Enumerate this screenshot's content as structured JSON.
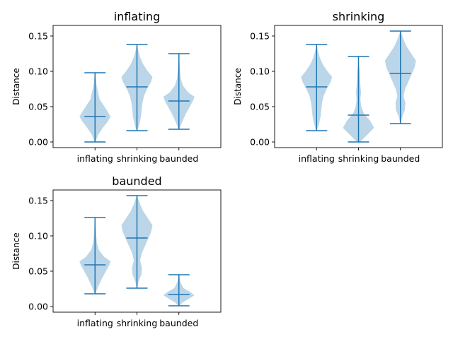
{
  "chart_data": [
    {
      "type": "violin",
      "title": "inflating",
      "xlabel": "",
      "ylabel": "Distance",
      "categories": [
        "inflating",
        "shrinking",
        "baunded"
      ],
      "ylim": [
        -0.008,
        0.165
      ],
      "yticks": [
        "0.00",
        "0.05",
        "0.10",
        "0.15"
      ],
      "grid": false,
      "violins": [
        {
          "min": 0.0,
          "median": 0.036,
          "max": 0.098,
          "density": [
            [
              0.0,
              0.02
            ],
            [
              0.01,
              0.2
            ],
            [
              0.02,
              0.5
            ],
            [
              0.03,
              0.85
            ],
            [
              0.036,
              1.0
            ],
            [
              0.045,
              0.75
            ],
            [
              0.052,
              0.55
            ],
            [
              0.06,
              0.3
            ],
            [
              0.07,
              0.2
            ],
            [
              0.08,
              0.1
            ],
            [
              0.09,
              0.05
            ],
            [
              0.098,
              0.01
            ]
          ]
        },
        {
          "min": 0.016,
          "median": 0.078,
          "max": 0.138,
          "density": [
            [
              0.016,
              0.02
            ],
            [
              0.025,
              0.15
            ],
            [
              0.035,
              0.25
            ],
            [
              0.045,
              0.3
            ],
            [
              0.055,
              0.35
            ],
            [
              0.065,
              0.45
            ],
            [
              0.075,
              0.65
            ],
            [
              0.085,
              0.9
            ],
            [
              0.092,
              1.0
            ],
            [
              0.1,
              0.7
            ],
            [
              0.11,
              0.4
            ],
            [
              0.12,
              0.2
            ],
            [
              0.13,
              0.08
            ],
            [
              0.138,
              0.01
            ]
          ]
        },
        {
          "min": 0.018,
          "median": 0.058,
          "max": 0.125,
          "density": [
            [
              0.018,
              0.02
            ],
            [
              0.028,
              0.2
            ],
            [
              0.04,
              0.45
            ],
            [
              0.05,
              0.7
            ],
            [
              0.058,
              0.9
            ],
            [
              0.064,
              1.0
            ],
            [
              0.07,
              0.6
            ],
            [
              0.08,
              0.25
            ],
            [
              0.09,
              0.12
            ],
            [
              0.1,
              0.08
            ],
            [
              0.11,
              0.05
            ],
            [
              0.125,
              0.01
            ]
          ]
        }
      ]
    },
    {
      "type": "violin",
      "title": "shrinking",
      "xlabel": "",
      "ylabel": "Distance",
      "categories": [
        "inflating",
        "shrinking",
        "baunded"
      ],
      "ylim": [
        -0.008,
        0.165
      ],
      "yticks": [
        "0.00",
        "0.05",
        "0.10",
        "0.15"
      ],
      "grid": false,
      "violins": [
        {
          "min": 0.016,
          "median": 0.078,
          "max": 0.138,
          "density": [
            [
              0.016,
              0.02
            ],
            [
              0.025,
              0.15
            ],
            [
              0.035,
              0.25
            ],
            [
              0.045,
              0.3
            ],
            [
              0.055,
              0.35
            ],
            [
              0.065,
              0.45
            ],
            [
              0.075,
              0.65
            ],
            [
              0.085,
              0.9
            ],
            [
              0.092,
              1.0
            ],
            [
              0.1,
              0.7
            ],
            [
              0.11,
              0.4
            ],
            [
              0.12,
              0.2
            ],
            [
              0.13,
              0.08
            ],
            [
              0.138,
              0.01
            ]
          ]
        },
        {
          "min": 0.0,
          "median": 0.038,
          "max": 0.121,
          "density": [
            [
              0.0,
              0.1
            ],
            [
              0.01,
              0.55
            ],
            [
              0.02,
              1.0
            ],
            [
              0.03,
              0.75
            ],
            [
              0.04,
              0.35
            ],
            [
              0.05,
              0.18
            ],
            [
              0.06,
              0.12
            ],
            [
              0.07,
              0.16
            ],
            [
              0.08,
              0.12
            ],
            [
              0.09,
              0.1
            ],
            [
              0.1,
              0.08
            ],
            [
              0.11,
              0.03
            ],
            [
              0.121,
              0.01
            ]
          ]
        },
        {
          "min": 0.026,
          "median": 0.097,
          "max": 0.157,
          "density": [
            [
              0.026,
              0.02
            ],
            [
              0.035,
              0.1
            ],
            [
              0.045,
              0.28
            ],
            [
              0.055,
              0.32
            ],
            [
              0.065,
              0.2
            ],
            [
              0.075,
              0.3
            ],
            [
              0.085,
              0.5
            ],
            [
              0.095,
              0.7
            ],
            [
              0.105,
              0.9
            ],
            [
              0.115,
              1.0
            ],
            [
              0.125,
              0.7
            ],
            [
              0.135,
              0.4
            ],
            [
              0.145,
              0.2
            ],
            [
              0.157,
              0.01
            ]
          ]
        }
      ]
    },
    {
      "type": "violin",
      "title": "baunded",
      "xlabel": "",
      "ylabel": "Distance",
      "categories": [
        "inflating",
        "shrinking",
        "baunded"
      ],
      "ylim": [
        -0.008,
        0.165
      ],
      "yticks": [
        "0.00",
        "0.05",
        "0.10",
        "0.15"
      ],
      "grid": false,
      "violins": [
        {
          "min": 0.018,
          "median": 0.059,
          "max": 0.126,
          "density": [
            [
              0.018,
              0.02
            ],
            [
              0.028,
              0.2
            ],
            [
              0.04,
              0.45
            ],
            [
              0.05,
              0.7
            ],
            [
              0.058,
              0.9
            ],
            [
              0.064,
              1.0
            ],
            [
              0.07,
              0.6
            ],
            [
              0.08,
              0.25
            ],
            [
              0.09,
              0.12
            ],
            [
              0.1,
              0.08
            ],
            [
              0.11,
              0.05
            ],
            [
              0.126,
              0.01
            ]
          ]
        },
        {
          "min": 0.026,
          "median": 0.097,
          "max": 0.157,
          "density": [
            [
              0.026,
              0.02
            ],
            [
              0.035,
              0.1
            ],
            [
              0.045,
              0.28
            ],
            [
              0.055,
              0.32
            ],
            [
              0.065,
              0.2
            ],
            [
              0.075,
              0.3
            ],
            [
              0.085,
              0.5
            ],
            [
              0.095,
              0.7
            ],
            [
              0.105,
              0.9
            ],
            [
              0.115,
              1.0
            ],
            [
              0.125,
              0.7
            ],
            [
              0.135,
              0.4
            ],
            [
              0.145,
              0.2
            ],
            [
              0.157,
              0.01
            ]
          ]
        },
        {
          "min": 0.001,
          "median": 0.017,
          "max": 0.045,
          "density": [
            [
              0.001,
              0.05
            ],
            [
              0.006,
              0.25
            ],
            [
              0.011,
              0.65
            ],
            [
              0.016,
              1.0
            ],
            [
              0.021,
              0.7
            ],
            [
              0.026,
              0.3
            ],
            [
              0.031,
              0.18
            ],
            [
              0.036,
              0.08
            ],
            [
              0.045,
              0.01
            ]
          ]
        }
      ]
    }
  ],
  "colors": {
    "violin_fill": "#1f77b4",
    "violin_fill_opacity": 0.3,
    "line": "#1f77b4"
  }
}
